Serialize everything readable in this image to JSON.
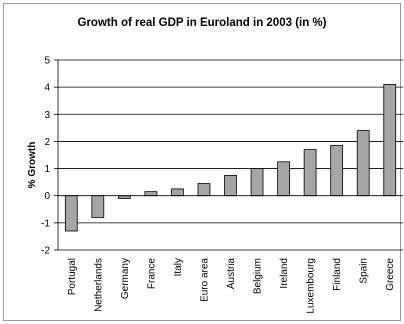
{
  "chart_data": {
    "type": "bar",
    "title": "Growth of real GDP in Euroland in 2003 (in %)",
    "xlabel": "",
    "ylabel": "% Growth",
    "categories": [
      "Portugal",
      "Netherlands",
      "Germany",
      "France",
      "Italy",
      "Euro area",
      "Austria",
      "Belgium",
      "Ireland",
      "Luxembourg",
      "Finland",
      "Spain",
      "Greece"
    ],
    "values": [
      -1.3,
      -0.8,
      -0.1,
      0.15,
      0.25,
      0.45,
      0.75,
      1.0,
      1.25,
      1.7,
      1.85,
      2.4,
      4.1
    ],
    "ylim": [
      -2,
      5
    ],
    "yticks": [
      -2,
      -1,
      0,
      1,
      2,
      3,
      4,
      5
    ],
    "grid": true,
    "legend": "none",
    "bar_color": "#a6a6a6",
    "bar_edge_color": "#000000",
    "grid_color": "#000000"
  }
}
